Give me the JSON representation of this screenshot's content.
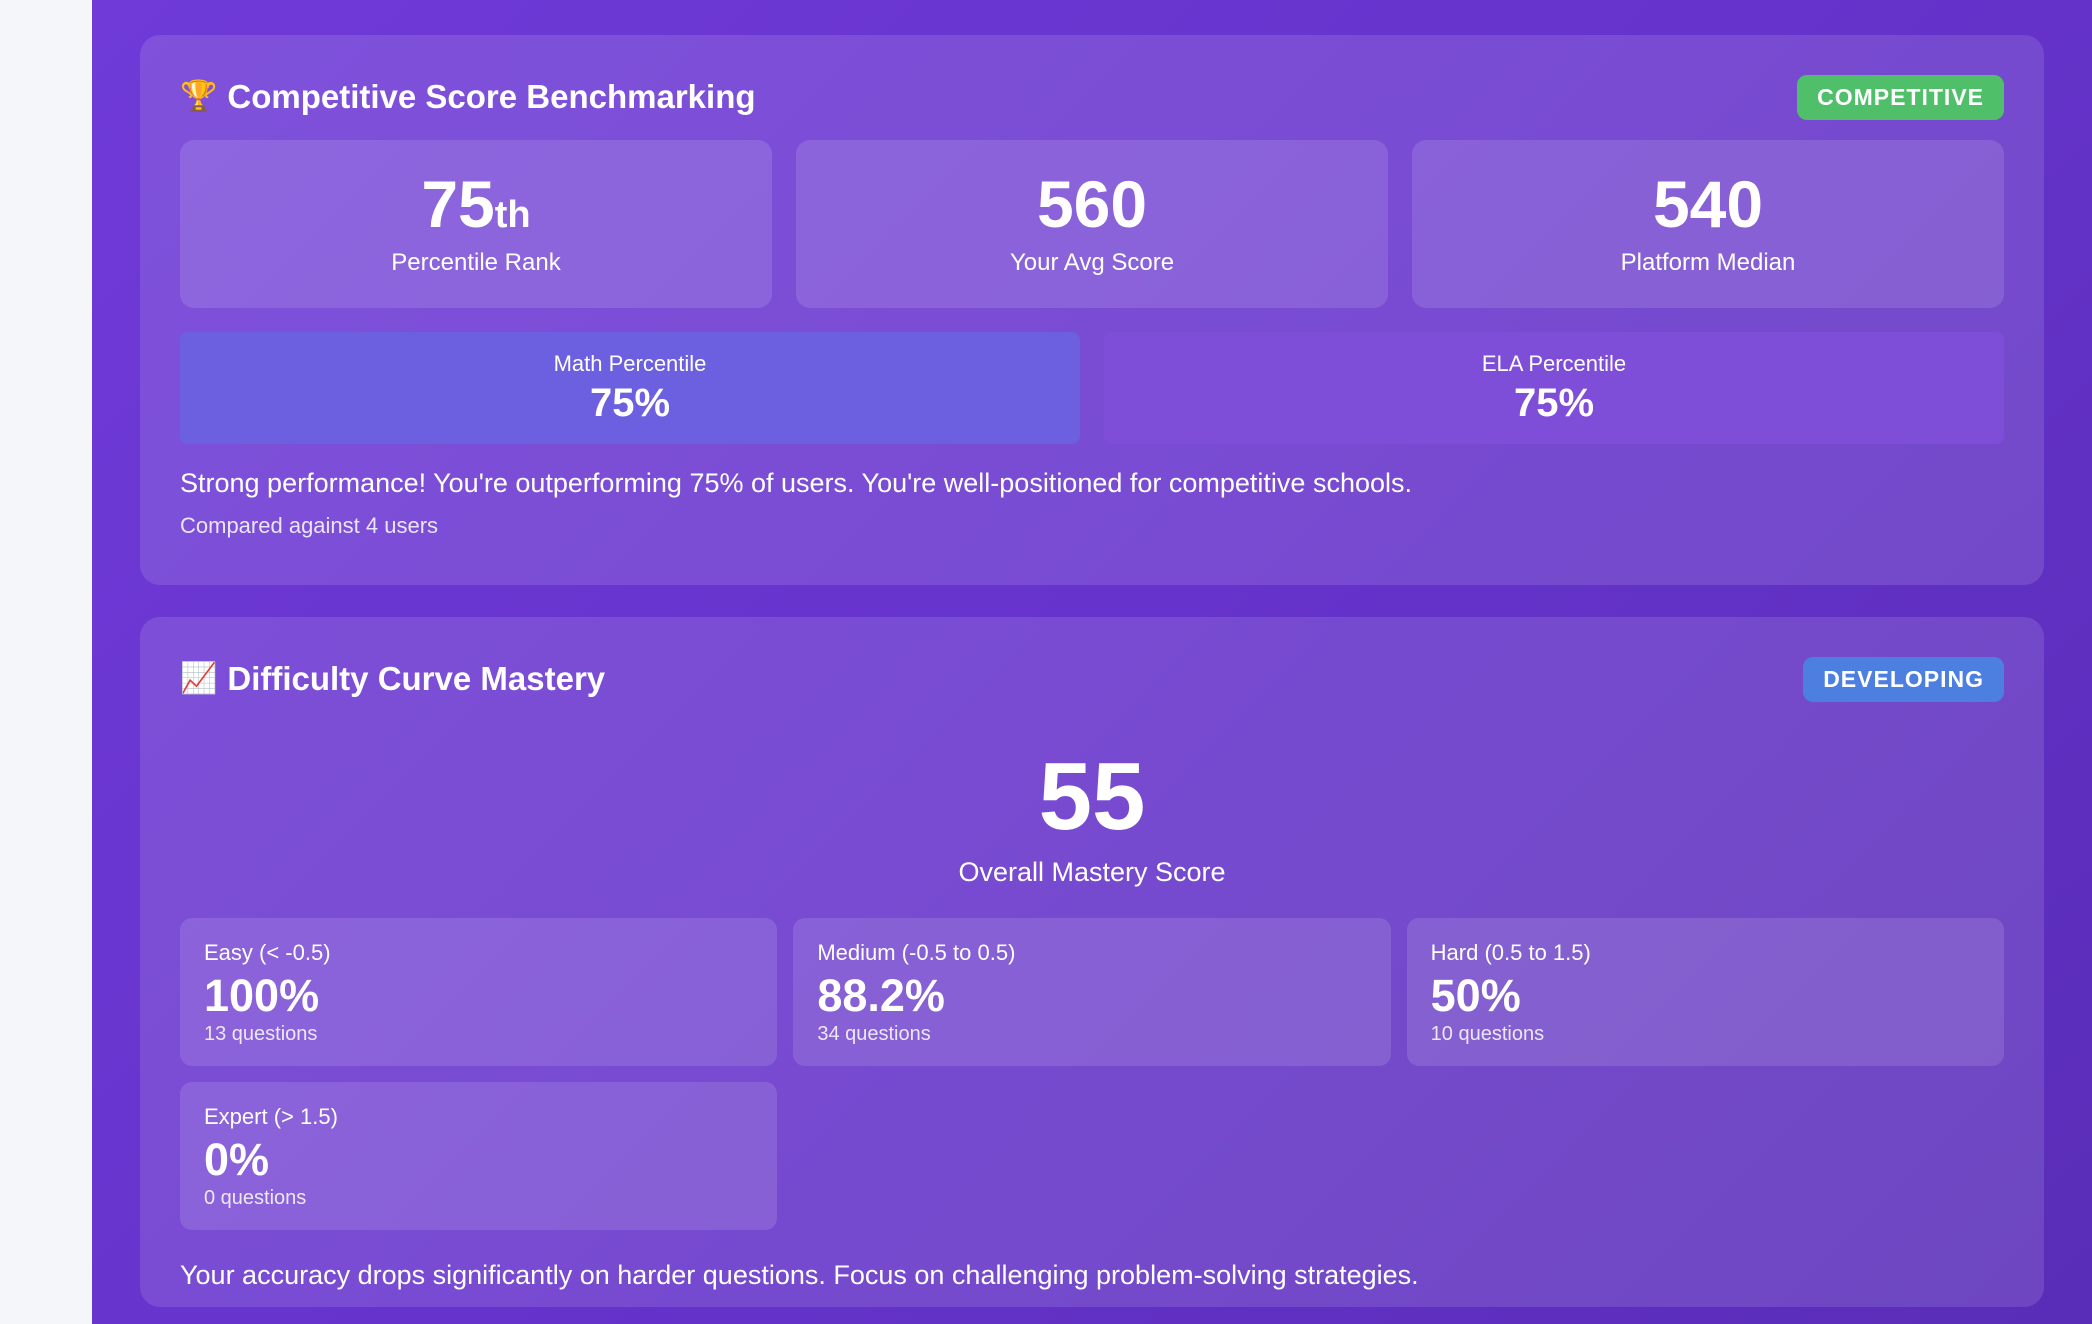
{
  "competitive": {
    "icon": "🏆",
    "title": "Competitive Score Benchmarking",
    "badge": "COMPETITIVE",
    "percentile_rank": {
      "value": "75",
      "suffix": "th",
      "label": "Percentile Rank"
    },
    "avg_score": {
      "value": "560",
      "label": "Your Avg Score"
    },
    "platform_median": {
      "value": "540",
      "label": "Platform Median"
    },
    "math": {
      "label": "Math Percentile",
      "value": "75%"
    },
    "ela": {
      "label": "ELA Percentile",
      "value": "75%"
    },
    "message": "Strong performance! You're outperforming 75% of users. You're well-positioned for competitive schools.",
    "footnote": "Compared against 4 users"
  },
  "difficulty": {
    "icon": "📈",
    "title": "Difficulty Curve Mastery",
    "badge": "DEVELOPING",
    "mastery": {
      "value": "55",
      "label": "Overall Mastery Score"
    },
    "levels": [
      {
        "label": "Easy (< -0.5)",
        "value": "100%",
        "count": "13 questions"
      },
      {
        "label": "Medium (-0.5 to 0.5)",
        "value": "88.2%",
        "count": "34 questions"
      },
      {
        "label": "Hard (0.5 to 1.5)",
        "value": "50%",
        "count": "10 questions"
      },
      {
        "label": "Expert (> 1.5)",
        "value": "0%",
        "count": "0 questions"
      }
    ],
    "message": "Your accuracy drops significantly on harder questions. Focus on challenging problem-solving strategies."
  },
  "colors": {
    "background": "#6633cc",
    "badge_competitive": "#4fbf6a",
    "badge_developing": "#4d7fe0",
    "math_box": "#6c5fe0",
    "ela_box": "#7f4ed8"
  }
}
